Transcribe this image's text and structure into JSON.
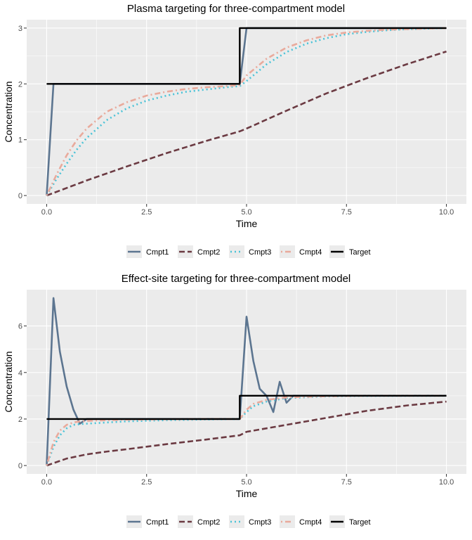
{
  "colors": {
    "Cmpt1": "#5c7590",
    "Cmpt2": "#6b3a42",
    "Cmpt3": "#4bc3d7",
    "Cmpt4": "#e9aa9c",
    "Target": "#000000",
    "panel": "#ebebeb",
    "grid": "#ffffff"
  },
  "chart_data": [
    {
      "type": "line",
      "title": "Plasma targeting for three-compartment model",
      "xlabel": "Time",
      "ylabel": "Concentration",
      "xlim": [
        -0.5,
        10.5
      ],
      "ylim": [
        -0.15,
        3.15
      ],
      "xticks": [
        0,
        2.5,
        5,
        7.5,
        10
      ],
      "xtick_labels": [
        "0.0",
        "2.5",
        "5.0",
        "7.5",
        "10.0"
      ],
      "yticks": [
        0,
        1,
        2,
        3
      ],
      "ytick_labels": [
        "0",
        "1",
        "2",
        "3"
      ],
      "grid": true,
      "legend_position": "bottom",
      "series": [
        {
          "name": "Cmpt1",
          "linestyle": "solid",
          "x": [
            0,
            0.17,
            4.83,
            5.0,
            10
          ],
          "y": [
            0,
            2,
            2,
            3,
            3
          ]
        },
        {
          "name": "Cmpt2",
          "linestyle": "dashed",
          "x": [
            0,
            1,
            2,
            3,
            4,
            4.83,
            5,
            6,
            7,
            8,
            9,
            10
          ],
          "y": [
            0,
            0.27,
            0.52,
            0.76,
            0.98,
            1.15,
            1.2,
            1.52,
            1.83,
            2.1,
            2.35,
            2.58
          ]
        },
        {
          "name": "Cmpt3",
          "linestyle": "dotted",
          "x": [
            0,
            0.25,
            0.5,
            0.75,
            1,
            1.5,
            2,
            2.5,
            3,
            3.5,
            4,
            4.5,
            4.83,
            5,
            5.5,
            6,
            6.5,
            7,
            7.5,
            8,
            8.5,
            9,
            9.5,
            10
          ],
          "y": [
            0,
            0.3,
            0.57,
            0.82,
            1.03,
            1.35,
            1.56,
            1.7,
            1.79,
            1.86,
            1.9,
            1.94,
            1.96,
            2.05,
            2.35,
            2.57,
            2.72,
            2.82,
            2.89,
            2.93,
            2.96,
            2.98,
            2.99,
            3.0
          ]
        },
        {
          "name": "Cmpt4",
          "linestyle": "dotdash",
          "x": [
            0,
            0.25,
            0.5,
            0.75,
            1,
            1.5,
            2,
            2.5,
            3,
            3.5,
            4,
            4.5,
            4.83,
            5,
            5.5,
            6,
            6.5,
            7,
            7.5,
            8,
            8.5,
            9,
            9.5,
            10
          ],
          "y": [
            0,
            0.38,
            0.72,
            0.99,
            1.2,
            1.5,
            1.67,
            1.79,
            1.86,
            1.91,
            1.94,
            1.96,
            1.98,
            2.15,
            2.45,
            2.65,
            2.78,
            2.87,
            2.92,
            2.95,
            2.97,
            2.98,
            2.99,
            3.0
          ]
        },
        {
          "name": "Target",
          "linestyle": "solid",
          "x": [
            0,
            4.83,
            4.83,
            10
          ],
          "y": [
            2,
            2,
            3,
            3
          ]
        }
      ]
    },
    {
      "type": "line",
      "title": "Effect-site targeting for three-compartment model",
      "xlabel": "Time",
      "ylabel": "Concentration",
      "xlim": [
        -0.5,
        10.5
      ],
      "ylim": [
        -0.36,
        7.56
      ],
      "xticks": [
        0,
        2.5,
        5,
        7.5,
        10
      ],
      "xtick_labels": [
        "0.0",
        "2.5",
        "5.0",
        "7.5",
        "10.0"
      ],
      "yticks": [
        0,
        2,
        4,
        6
      ],
      "ytick_labels": [
        "0",
        "2",
        "4",
        "6"
      ],
      "grid": true,
      "legend_position": "bottom",
      "series": [
        {
          "name": "Cmpt1",
          "linestyle": "solid",
          "x": [
            0,
            0.17,
            0.33,
            0.5,
            0.67,
            0.83,
            1.0,
            4.83,
            5.0,
            5.17,
            5.33,
            5.5,
            5.67,
            5.83,
            6.0,
            6.17,
            10
          ],
          "y": [
            0,
            7.2,
            4.9,
            3.4,
            2.4,
            1.8,
            2.0,
            2.0,
            6.4,
            4.5,
            3.3,
            3.0,
            2.3,
            3.6,
            2.7,
            3.0,
            3.0
          ]
        },
        {
          "name": "Cmpt2",
          "linestyle": "dashed",
          "x": [
            0,
            0.5,
            1,
            1.5,
            2,
            3,
            4,
            4.83,
            5.0,
            5.5,
            6,
            7,
            8,
            9,
            10
          ],
          "y": [
            0,
            0.3,
            0.48,
            0.6,
            0.7,
            0.92,
            1.12,
            1.3,
            1.45,
            1.6,
            1.75,
            2.05,
            2.35,
            2.58,
            2.75
          ]
        },
        {
          "name": "Cmpt3",
          "linestyle": "dotted",
          "x": [
            0,
            0.17,
            0.33,
            0.5,
            0.67,
            0.83,
            1.0,
            1.5,
            2,
            3,
            4,
            4.83,
            5.0,
            5.17,
            5.5,
            6,
            7,
            8,
            10
          ],
          "y": [
            0,
            0.8,
            1.3,
            1.6,
            1.75,
            1.78,
            1.8,
            1.85,
            1.9,
            1.95,
            1.98,
            2.0,
            2.3,
            2.55,
            2.75,
            2.9,
            2.97,
            2.99,
            3.0
          ]
        },
        {
          "name": "Cmpt4",
          "linestyle": "dotdash",
          "x": [
            0,
            0.17,
            0.33,
            0.5,
            0.67,
            0.83,
            1.0,
            1.5,
            2,
            3,
            4,
            4.83,
            5.0,
            5.17,
            5.5,
            6,
            7,
            8,
            10
          ],
          "y": [
            0,
            1.0,
            1.5,
            1.75,
            1.85,
            1.9,
            1.92,
            1.95,
            1.97,
            1.99,
            2.0,
            2.0,
            2.4,
            2.65,
            2.82,
            2.93,
            2.98,
            3.0,
            3.0
          ]
        },
        {
          "name": "Target",
          "linestyle": "solid",
          "x": [
            0,
            4.83,
            4.83,
            10
          ],
          "y": [
            2,
            2,
            3,
            3
          ]
        }
      ]
    }
  ]
}
